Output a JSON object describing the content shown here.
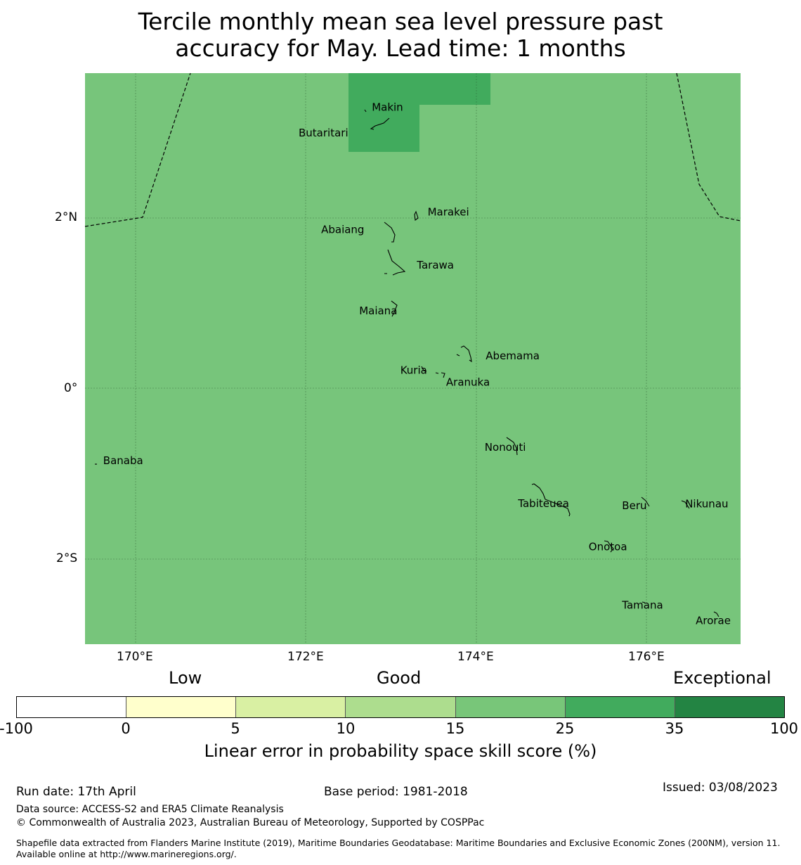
{
  "title_line1": "Tercile monthly mean sea level pressure past",
  "title_line2": "accuracy for May. Lead time: 1 months",
  "map": {
    "lon_range": [
      169.4,
      177.1
    ],
    "lat_range": [
      -2.99,
      3.7
    ],
    "background_color": "#77c57b",
    "highlight_color": "#41ab5d",
    "lon_ticks": [
      "170°E",
      "172°E",
      "174°E",
      "176°E"
    ],
    "lat_ticks": [
      "2°N",
      "0°",
      "2°S"
    ],
    "islands": [
      {
        "name": "Makin",
        "lon": 173.0,
        "lat": 3.3
      },
      {
        "name": "Butaritari",
        "lon": 172.8,
        "lat": 3.0
      },
      {
        "name": "Marakei",
        "lon": 173.3,
        "lat": 2.0
      },
      {
        "name": "Abaiang",
        "lon": 172.9,
        "lat": 1.85
      },
      {
        "name": "Tarawa",
        "lon": 173.05,
        "lat": 1.4
      },
      {
        "name": "Maiana",
        "lon": 173.0,
        "lat": 0.95
      },
      {
        "name": "Abemama",
        "lon": 173.9,
        "lat": 0.38
      },
      {
        "name": "Kuria",
        "lon": 173.4,
        "lat": 0.22
      },
      {
        "name": "Aranuka",
        "lon": 173.6,
        "lat": 0.16
      },
      {
        "name": "Nonouti",
        "lon": 174.4,
        "lat": -0.65
      },
      {
        "name": "Banaba",
        "lon": 169.53,
        "lat": -0.88
      },
      {
        "name": "Beru",
        "lon": 175.98,
        "lat": -1.35
      },
      {
        "name": "Nikunau",
        "lon": 176.45,
        "lat": -1.38
      },
      {
        "name": "Tabiteuea",
        "lon": 174.8,
        "lat": -1.3
      },
      {
        "name": "Onotoa",
        "lon": 175.58,
        "lat": -1.85
      },
      {
        "name": "Tamana",
        "lon": 175.98,
        "lat": -2.5
      },
      {
        "name": "Arorae",
        "lon": 176.82,
        "lat": -2.64
      }
    ]
  },
  "legend": {
    "categories": [
      "Low",
      "Good",
      "Exceptional"
    ],
    "bins": [
      "-100",
      "0",
      "5",
      "10",
      "15",
      "25",
      "35",
      "100"
    ],
    "colors": [
      "#ffffff",
      "#ffffcc",
      "#d9f0a3",
      "#addd8e",
      "#78c679",
      "#41ab5d",
      "#238443"
    ],
    "label": "Linear error in probability space skill score (%)"
  },
  "footer": {
    "run_date": "Run date: 17th April",
    "base_period": "Base period: 1981-2018",
    "issued": "Issued: 03/08/2023",
    "data_source": "Data source: ACCESS-S2 and ERA5 Climate Reanalysis",
    "copyright": "© Commonwealth of Australia 2023, Australian Bureau of Meteorology, Supported by COSPPac",
    "shapefile": "Shapefile data extracted from Flanders Marine Institute (2019), Maritime Boundaries Geodatabase: Maritime Boundaries and Exclusive Economic Zones (200NM), version 11. Available online at http://www.marineregions.org/."
  }
}
